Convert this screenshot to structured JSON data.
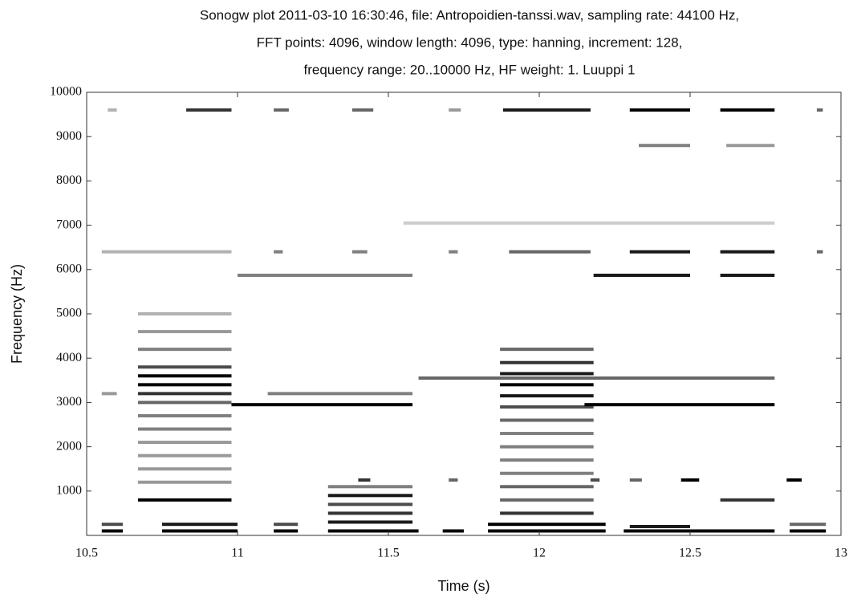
{
  "chart_data": {
    "type": "spectrogram",
    "title": [
      "Sonogw plot 2011-03-10 16:30:46, file: Antropoidien-tanssi.wav, sampling rate: 44100 Hz,",
      "FFT points: 4096, window length: 4096, type: hanning, increment: 128,",
      "frequency range: 20..10000 Hz, HF weight: 1. Luuppi 1"
    ],
    "x_label": "Time (s)",
    "y_label": "Frequency (Hz)",
    "xlim": [
      10.5,
      13
    ],
    "xticks": [
      10.5,
      11,
      11.5,
      12,
      12.5,
      13
    ],
    "ylim": [
      0,
      10000
    ],
    "yticks": [
      1000,
      2000,
      3000,
      4000,
      5000,
      6000,
      7000,
      8000,
      9000,
      10000
    ],
    "color": "#000000",
    "segments": [
      {
        "x": [
          10.57,
          10.6
        ],
        "y": 9600,
        "level": 0.3
      },
      {
        "x": [
          10.83,
          10.98
        ],
        "y": 9600,
        "level": 0.8
      },
      {
        "x": [
          11.12,
          11.17
        ],
        "y": 9600,
        "level": 0.6
      },
      {
        "x": [
          11.38,
          11.45
        ],
        "y": 9600,
        "level": 0.6
      },
      {
        "x": [
          11.7,
          11.74
        ],
        "y": 9600,
        "level": 0.4
      },
      {
        "x": [
          11.88,
          12.17
        ],
        "y": 9600,
        "level": 0.9
      },
      {
        "x": [
          12.3,
          12.5
        ],
        "y": 9600,
        "level": 1
      },
      {
        "x": [
          12.6,
          12.78
        ],
        "y": 9600,
        "level": 1
      },
      {
        "x": [
          12.92,
          12.94
        ],
        "y": 9600,
        "level": 0.6
      },
      {
        "x": [
          12.33,
          12.5
        ],
        "y": 8800,
        "level": 0.5
      },
      {
        "x": [
          12.62,
          12.78
        ],
        "y": 8800,
        "level": 0.4
      },
      {
        "x": [
          11.55,
          12.78
        ],
        "y": 7050,
        "level": 0.2
      },
      {
        "x": [
          10.55,
          10.98
        ],
        "y": 6400,
        "level": 0.3
      },
      {
        "x": [
          11.12,
          11.15
        ],
        "y": 6400,
        "level": 0.5
      },
      {
        "x": [
          11.38,
          11.43
        ],
        "y": 6400,
        "level": 0.5
      },
      {
        "x": [
          11.7,
          11.73
        ],
        "y": 6400,
        "level": 0.5
      },
      {
        "x": [
          11.9,
          12.17
        ],
        "y": 6400,
        "level": 0.6
      },
      {
        "x": [
          12.3,
          12.5
        ],
        "y": 6400,
        "level": 0.9
      },
      {
        "x": [
          12.6,
          12.78
        ],
        "y": 6400,
        "level": 0.9
      },
      {
        "x": [
          12.92,
          12.94
        ],
        "y": 6400,
        "level": 0.6
      },
      {
        "x": [
          11.0,
          11.58
        ],
        "y": 5870,
        "level": 0.5
      },
      {
        "x": [
          12.18,
          12.5
        ],
        "y": 5870,
        "level": 0.9
      },
      {
        "x": [
          12.6,
          12.78
        ],
        "y": 5870,
        "level": 0.9
      },
      {
        "x": [
          11.6,
          12.78
        ],
        "y": 3550,
        "level": 0.6
      },
      {
        "x": [
          10.55,
          10.6
        ],
        "y": 3200,
        "level": 0.4
      },
      {
        "x": [
          11.1,
          11.58
        ],
        "y": 3200,
        "level": 0.5
      },
      {
        "x": [
          10.98,
          11.58
        ],
        "y": 2950,
        "level": 1
      },
      {
        "x": [
          12.15,
          12.78
        ],
        "y": 2950,
        "level": 1
      },
      {
        "x": [
          10.67,
          10.98
        ],
        "y": 3600,
        "level": 1
      },
      {
        "x": [
          10.67,
          10.98
        ],
        "y": 3400,
        "level": 1
      },
      {
        "x": [
          10.67,
          10.98
        ],
        "y": 3200,
        "level": 0.8
      },
      {
        "x": [
          10.67,
          10.98
        ],
        "y": 3800,
        "level": 0.7
      },
      {
        "x": [
          10.67,
          10.98
        ],
        "y": 3000,
        "level": 0.6
      },
      {
        "x": [
          10.67,
          10.98
        ],
        "y": 2700,
        "level": 0.5
      },
      {
        "x": [
          10.67,
          10.98
        ],
        "y": 2400,
        "level": 0.5
      },
      {
        "x": [
          10.67,
          10.98
        ],
        "y": 2100,
        "level": 0.4
      },
      {
        "x": [
          10.67,
          10.98
        ],
        "y": 1800,
        "level": 0.4
      },
      {
        "x": [
          10.67,
          10.98
        ],
        "y": 1500,
        "level": 0.4
      },
      {
        "x": [
          10.67,
          10.98
        ],
        "y": 1200,
        "level": 0.4
      },
      {
        "x": [
          10.67,
          10.98
        ],
        "y": 800,
        "level": 1
      },
      {
        "x": [
          10.67,
          10.98
        ],
        "y": 4200,
        "level": 0.5
      },
      {
        "x": [
          10.67,
          10.98
        ],
        "y": 4600,
        "level": 0.4
      },
      {
        "x": [
          10.67,
          10.98
        ],
        "y": 5000,
        "level": 0.3
      },
      {
        "x": [
          11.87,
          12.18
        ],
        "y": 3650,
        "level": 0.9
      },
      {
        "x": [
          11.87,
          12.18
        ],
        "y": 3400,
        "level": 1
      },
      {
        "x": [
          11.87,
          12.18
        ],
        "y": 3150,
        "level": 0.9
      },
      {
        "x": [
          11.87,
          12.18
        ],
        "y": 3900,
        "level": 0.8
      },
      {
        "x": [
          11.87,
          12.18
        ],
        "y": 4200,
        "level": 0.6
      },
      {
        "x": [
          11.87,
          12.18
        ],
        "y": 2900,
        "level": 0.7
      },
      {
        "x": [
          11.87,
          12.18
        ],
        "y": 2600,
        "level": 0.6
      },
      {
        "x": [
          11.87,
          12.18
        ],
        "y": 2300,
        "level": 0.5
      },
      {
        "x": [
          11.87,
          12.18
        ],
        "y": 2000,
        "level": 0.5
      },
      {
        "x": [
          11.87,
          12.18
        ],
        "y": 1700,
        "level": 0.5
      },
      {
        "x": [
          11.87,
          12.18
        ],
        "y": 1400,
        "level": 0.5
      },
      {
        "x": [
          11.87,
          12.18
        ],
        "y": 1100,
        "level": 0.6
      },
      {
        "x": [
          11.87,
          12.18
        ],
        "y": 800,
        "level": 0.6
      },
      {
        "x": [
          11.87,
          12.18
        ],
        "y": 500,
        "level": 0.8
      },
      {
        "x": [
          11.3,
          11.58
        ],
        "y": 900,
        "level": 0.9
      },
      {
        "x": [
          11.3,
          11.58
        ],
        "y": 700,
        "level": 0.7
      },
      {
        "x": [
          11.3,
          11.58
        ],
        "y": 500,
        "level": 0.8
      },
      {
        "x": [
          11.3,
          11.58
        ],
        "y": 300,
        "level": 0.9
      },
      {
        "x": [
          11.3,
          11.58
        ],
        "y": 1100,
        "level": 0.5
      },
      {
        "x": [
          12.47,
          12.53
        ],
        "y": 1250,
        "level": 1
      },
      {
        "x": [
          12.82,
          12.87
        ],
        "y": 1250,
        "level": 1
      },
      {
        "x": [
          11.4,
          11.44
        ],
        "y": 1250,
        "level": 0.8
      },
      {
        "x": [
          11.7,
          11.73
        ],
        "y": 1250,
        "level": 0.6
      },
      {
        "x": [
          12.17,
          12.2
        ],
        "y": 1250,
        "level": 0.7
      },
      {
        "x": [
          12.3,
          12.34
        ],
        "y": 1250,
        "level": 0.6
      },
      {
        "x": [
          12.6,
          12.78
        ],
        "y": 800,
        "level": 0.8
      },
      {
        "x": [
          12.3,
          12.5
        ],
        "y": 200,
        "level": 0.9
      },
      {
        "x": [
          10.55,
          10.62
        ],
        "y": 100,
        "level": 1
      },
      {
        "x": [
          10.75,
          11.0
        ],
        "y": 100,
        "level": 1
      },
      {
        "x": [
          11.12,
          11.2
        ],
        "y": 100,
        "level": 1
      },
      {
        "x": [
          11.3,
          11.6
        ],
        "y": 100,
        "level": 1
      },
      {
        "x": [
          11.68,
          11.75
        ],
        "y": 100,
        "level": 1
      },
      {
        "x": [
          11.83,
          12.22
        ],
        "y": 100,
        "level": 1
      },
      {
        "x": [
          12.28,
          12.78
        ],
        "y": 100,
        "level": 1
      },
      {
        "x": [
          12.83,
          12.95
        ],
        "y": 100,
        "level": 1
      },
      {
        "x": [
          10.55,
          10.62
        ],
        "y": 250,
        "level": 0.7
      },
      {
        "x": [
          10.75,
          11.0
        ],
        "y": 250,
        "level": 0.9
      },
      {
        "x": [
          11.12,
          11.2
        ],
        "y": 250,
        "level": 0.7
      },
      {
        "x": [
          11.83,
          12.22
        ],
        "y": 250,
        "level": 1
      },
      {
        "x": [
          12.83,
          12.95
        ],
        "y": 250,
        "level": 0.6
      }
    ]
  }
}
